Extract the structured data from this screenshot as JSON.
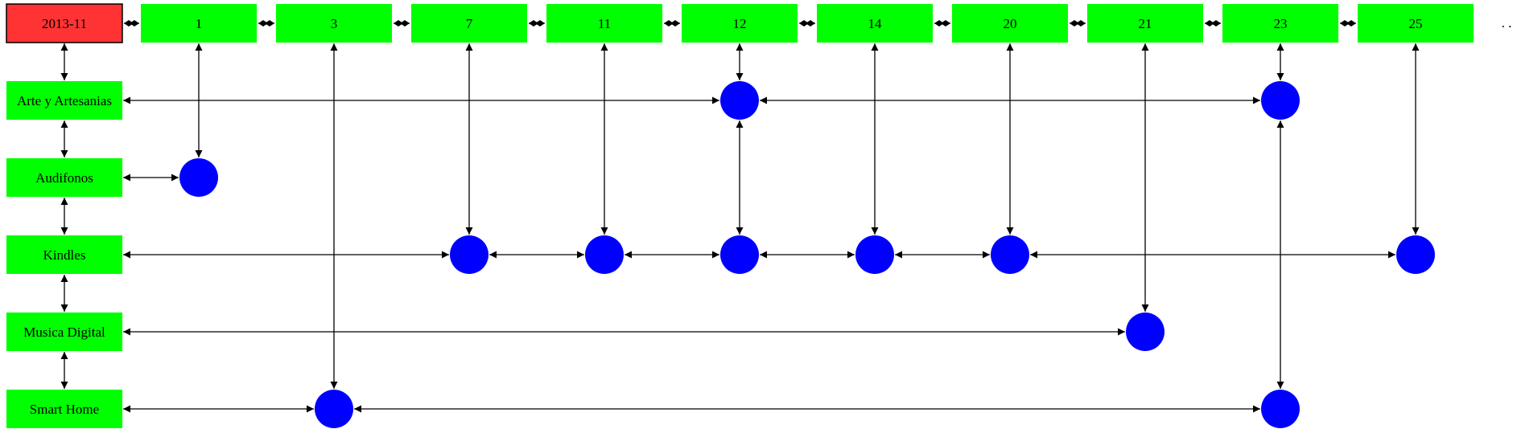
{
  "header": {
    "label": "2013-11",
    "color": "#ff3333"
  },
  "days": [
    "1",
    "3",
    "7",
    "11",
    "12",
    "14",
    "20",
    "21",
    "23",
    "25"
  ],
  "trailing": ". .",
  "categories": [
    "Arte y Artesanias",
    "Audifonos",
    "Kindles",
    "Musica Digital",
    "Smart Home"
  ],
  "cells": [
    {
      "category": "Arte y Artesanias",
      "days": [
        "12",
        "23"
      ]
    },
    {
      "category": "Audifonos",
      "days": [
        "1"
      ]
    },
    {
      "category": "Kindles",
      "days": [
        "7",
        "11",
        "12",
        "14",
        "20",
        "25"
      ]
    },
    {
      "category": "Musica Digital",
      "days": [
        "21"
      ]
    },
    {
      "category": "Smart Home",
      "days": [
        "3",
        "23"
      ]
    }
  ],
  "colors": {
    "box": "#00ff00",
    "dot": "#0000ff",
    "edge": "#000000"
  }
}
